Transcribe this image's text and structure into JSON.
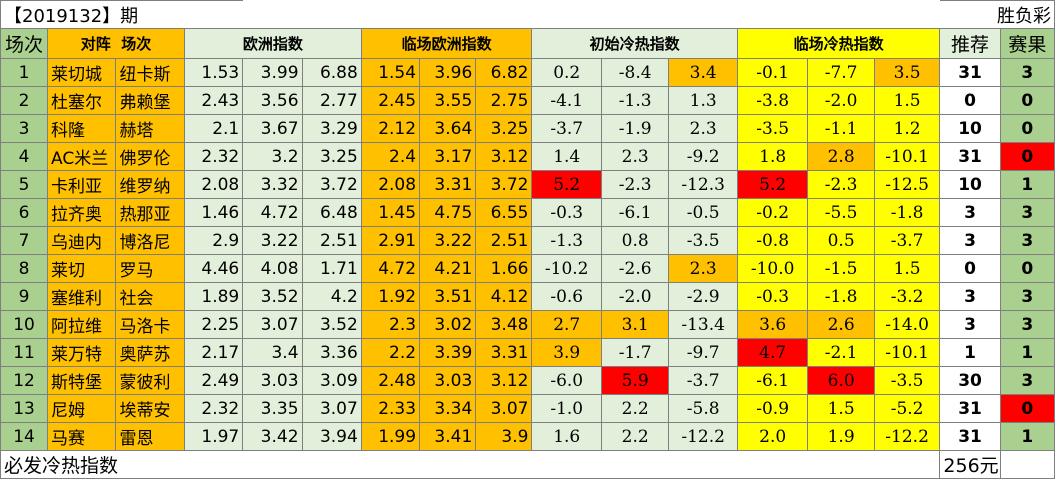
{
  "title": {
    "issue": "【2019132】期",
    "type": "胜负彩"
  },
  "headers": {
    "num": "场次",
    "match_a": "对阵",
    "match_b": "场次",
    "eu": "欧洲指数",
    "live_eu": "临场欧洲指数",
    "init_hc": "初始冷热指数",
    "live_hc": "临场冷热指数",
    "rec": "推荐",
    "res": "赛果"
  },
  "colors": {
    "green": "#a9d08e",
    "light_green": "#e2efda",
    "orange": "#ffc000",
    "yellow": "#ffff00",
    "red": "#ff0000"
  },
  "rows": [
    {
      "num": "1",
      "home": "莱切城",
      "away": "纽卡斯",
      "eu": [
        "1.53",
        "3.99",
        "6.88"
      ],
      "live": [
        "1.54",
        "3.96",
        "6.82"
      ],
      "init": [
        "0.2",
        "-8.4",
        "3.4"
      ],
      "lh": [
        "-0.1",
        "-7.7",
        "3.5"
      ],
      "rec": "31",
      "res": "3"
    },
    {
      "num": "2",
      "home": "杜塞尔",
      "away": "弗赖堡",
      "eu": [
        "2.43",
        "3.56",
        "2.77"
      ],
      "live": [
        "2.45",
        "3.55",
        "2.75"
      ],
      "init": [
        "-4.1",
        "-1.3",
        "1.3"
      ],
      "lh": [
        "-3.8",
        "-2.0",
        "1.5"
      ],
      "rec": "0",
      "res": "0"
    },
    {
      "num": "3",
      "home": "科隆",
      "away": "赫塔",
      "eu": [
        "2.1",
        "3.67",
        "3.29"
      ],
      "live": [
        "2.12",
        "3.64",
        "3.25"
      ],
      "init": [
        "-3.7",
        "-1.9",
        "2.3"
      ],
      "lh": [
        "-3.5",
        "-1.1",
        "1.2"
      ],
      "rec": "10",
      "res": "0"
    },
    {
      "num": "4",
      "home": "AC米兰",
      "away": "佛罗伦",
      "eu": [
        "2.32",
        "3.2",
        "3.25"
      ],
      "live": [
        "2.4",
        "3.17",
        "3.12"
      ],
      "init": [
        "1.4",
        "2.3",
        "-9.2"
      ],
      "lh": [
        "1.8",
        "2.8",
        "-10.1"
      ],
      "rec": "31",
      "res": "0"
    },
    {
      "num": "5",
      "home": "卡利亚",
      "away": "维罗纳",
      "eu": [
        "2.08",
        "3.32",
        "3.72"
      ],
      "live": [
        "2.08",
        "3.31",
        "3.72"
      ],
      "init": [
        "5.2",
        "-2.3",
        "-12.3"
      ],
      "lh": [
        "5.2",
        "-2.3",
        "-12.5"
      ],
      "rec": "10",
      "res": "1"
    },
    {
      "num": "6",
      "home": "拉齐奥",
      "away": "热那亚",
      "eu": [
        "1.46",
        "4.72",
        "6.48"
      ],
      "live": [
        "1.45",
        "4.75",
        "6.55"
      ],
      "init": [
        "-0.3",
        "-6.1",
        "-0.5"
      ],
      "lh": [
        "-0.2",
        "-5.5",
        "-1.8"
      ],
      "rec": "3",
      "res": "3"
    },
    {
      "num": "7",
      "home": "乌迪内",
      "away": "博洛尼",
      "eu": [
        "2.9",
        "3.22",
        "2.51"
      ],
      "live": [
        "2.91",
        "3.22",
        "2.51"
      ],
      "init": [
        "-1.3",
        "0.8",
        "-3.5"
      ],
      "lh": [
        "-0.8",
        "0.5",
        "-3.7"
      ],
      "rec": "3",
      "res": "3"
    },
    {
      "num": "8",
      "home": "莱切",
      "away": "罗马",
      "eu": [
        "4.46",
        "4.08",
        "1.71"
      ],
      "live": [
        "4.72",
        "4.21",
        "1.66"
      ],
      "init": [
        "-10.2",
        "-2.6",
        "2.3"
      ],
      "lh": [
        "-10.0",
        "-1.5",
        "1.5"
      ],
      "rec": "0",
      "res": "0"
    },
    {
      "num": "9",
      "home": "塞维利",
      "away": "社会",
      "eu": [
        "1.89",
        "3.52",
        "4.2"
      ],
      "live": [
        "1.92",
        "3.51",
        "4.12"
      ],
      "init": [
        "-0.6",
        "-2.0",
        "-2.9"
      ],
      "lh": [
        "-0.3",
        "-1.8",
        "-3.2"
      ],
      "rec": "3",
      "res": "3"
    },
    {
      "num": "10",
      "home": "阿拉维",
      "away": "马洛卡",
      "eu": [
        "2.25",
        "3.07",
        "3.52"
      ],
      "live": [
        "2.3",
        "3.02",
        "3.48"
      ],
      "init": [
        "2.7",
        "3.1",
        "-13.4"
      ],
      "lh": [
        "3.6",
        "2.6",
        "-14.0"
      ],
      "rec": "3",
      "res": "3"
    },
    {
      "num": "11",
      "home": "莱万特",
      "away": "奥萨苏",
      "eu": [
        "2.17",
        "3.4",
        "3.36"
      ],
      "live": [
        "2.2",
        "3.39",
        "3.31"
      ],
      "init": [
        "3.9",
        "-1.7",
        "-9.7"
      ],
      "lh": [
        "4.7",
        "-2.1",
        "-10.1"
      ],
      "rec": "1",
      "res": "1"
    },
    {
      "num": "12",
      "home": "斯特堡",
      "away": "蒙彼利",
      "eu": [
        "2.49",
        "3.03",
        "3.09"
      ],
      "live": [
        "2.48",
        "3.03",
        "3.12"
      ],
      "init": [
        "-6.0",
        "5.9",
        "-3.7"
      ],
      "lh": [
        "-6.1",
        "6.0",
        "-3.5"
      ],
      "rec": "30",
      "res": "3"
    },
    {
      "num": "13",
      "home": "尼姆",
      "away": "埃蒂安",
      "eu": [
        "2.32",
        "3.35",
        "3.07"
      ],
      "live": [
        "2.33",
        "3.34",
        "3.07"
      ],
      "init": [
        "-1.0",
        "2.2",
        "-5.8"
      ],
      "lh": [
        "-0.9",
        "1.5",
        "-5.2"
      ],
      "rec": "31",
      "res": "0"
    },
    {
      "num": "14",
      "home": "马赛",
      "away": "雷恩",
      "eu": [
        "1.97",
        "3.42",
        "3.94"
      ],
      "live": [
        "1.99",
        "3.41",
        "3.9"
      ],
      "init": [
        "1.6",
        "2.2",
        "-12.2"
      ],
      "lh": [
        "2.0",
        "1.9",
        "-12.2"
      ],
      "rec": "31",
      "res": "1"
    }
  ],
  "footer": {
    "label": "必发冷热指数",
    "cost": "256元"
  }
}
